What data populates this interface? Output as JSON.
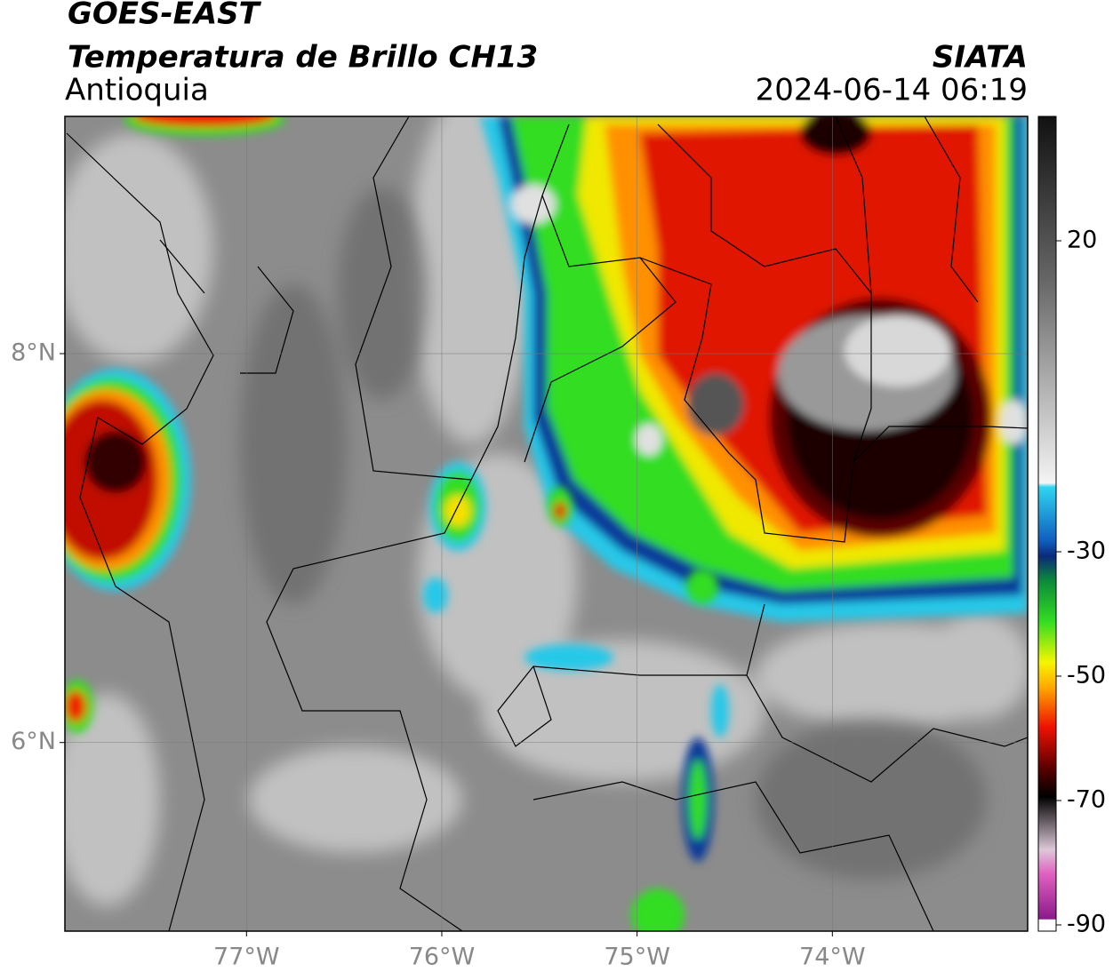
{
  "header": {
    "title": "GOES-EAST",
    "subtitle": "Temperatura de Brillo CH13",
    "region": "Antioquia",
    "source": "SIATA",
    "datetime": "2024-06-14 06:19"
  },
  "map": {
    "xlim": [
      -77.93,
      -73.0
    ],
    "ylim": [
      5.03,
      9.22
    ],
    "xticks": [
      {
        "value": -77,
        "label": "77°W"
      },
      {
        "value": -76,
        "label": "76°W"
      },
      {
        "value": -75,
        "label": "75°W"
      },
      {
        "value": -74,
        "label": "74°W"
      }
    ],
    "yticks": [
      {
        "value": 6,
        "label": "6°N"
      },
      {
        "value": 8,
        "label": "8°N"
      }
    ],
    "grid": true
  },
  "colorbar": {
    "lim": [
      -91,
      40
    ],
    "ticks": [
      20,
      -30,
      -50,
      -70,
      -90
    ]
  }
}
